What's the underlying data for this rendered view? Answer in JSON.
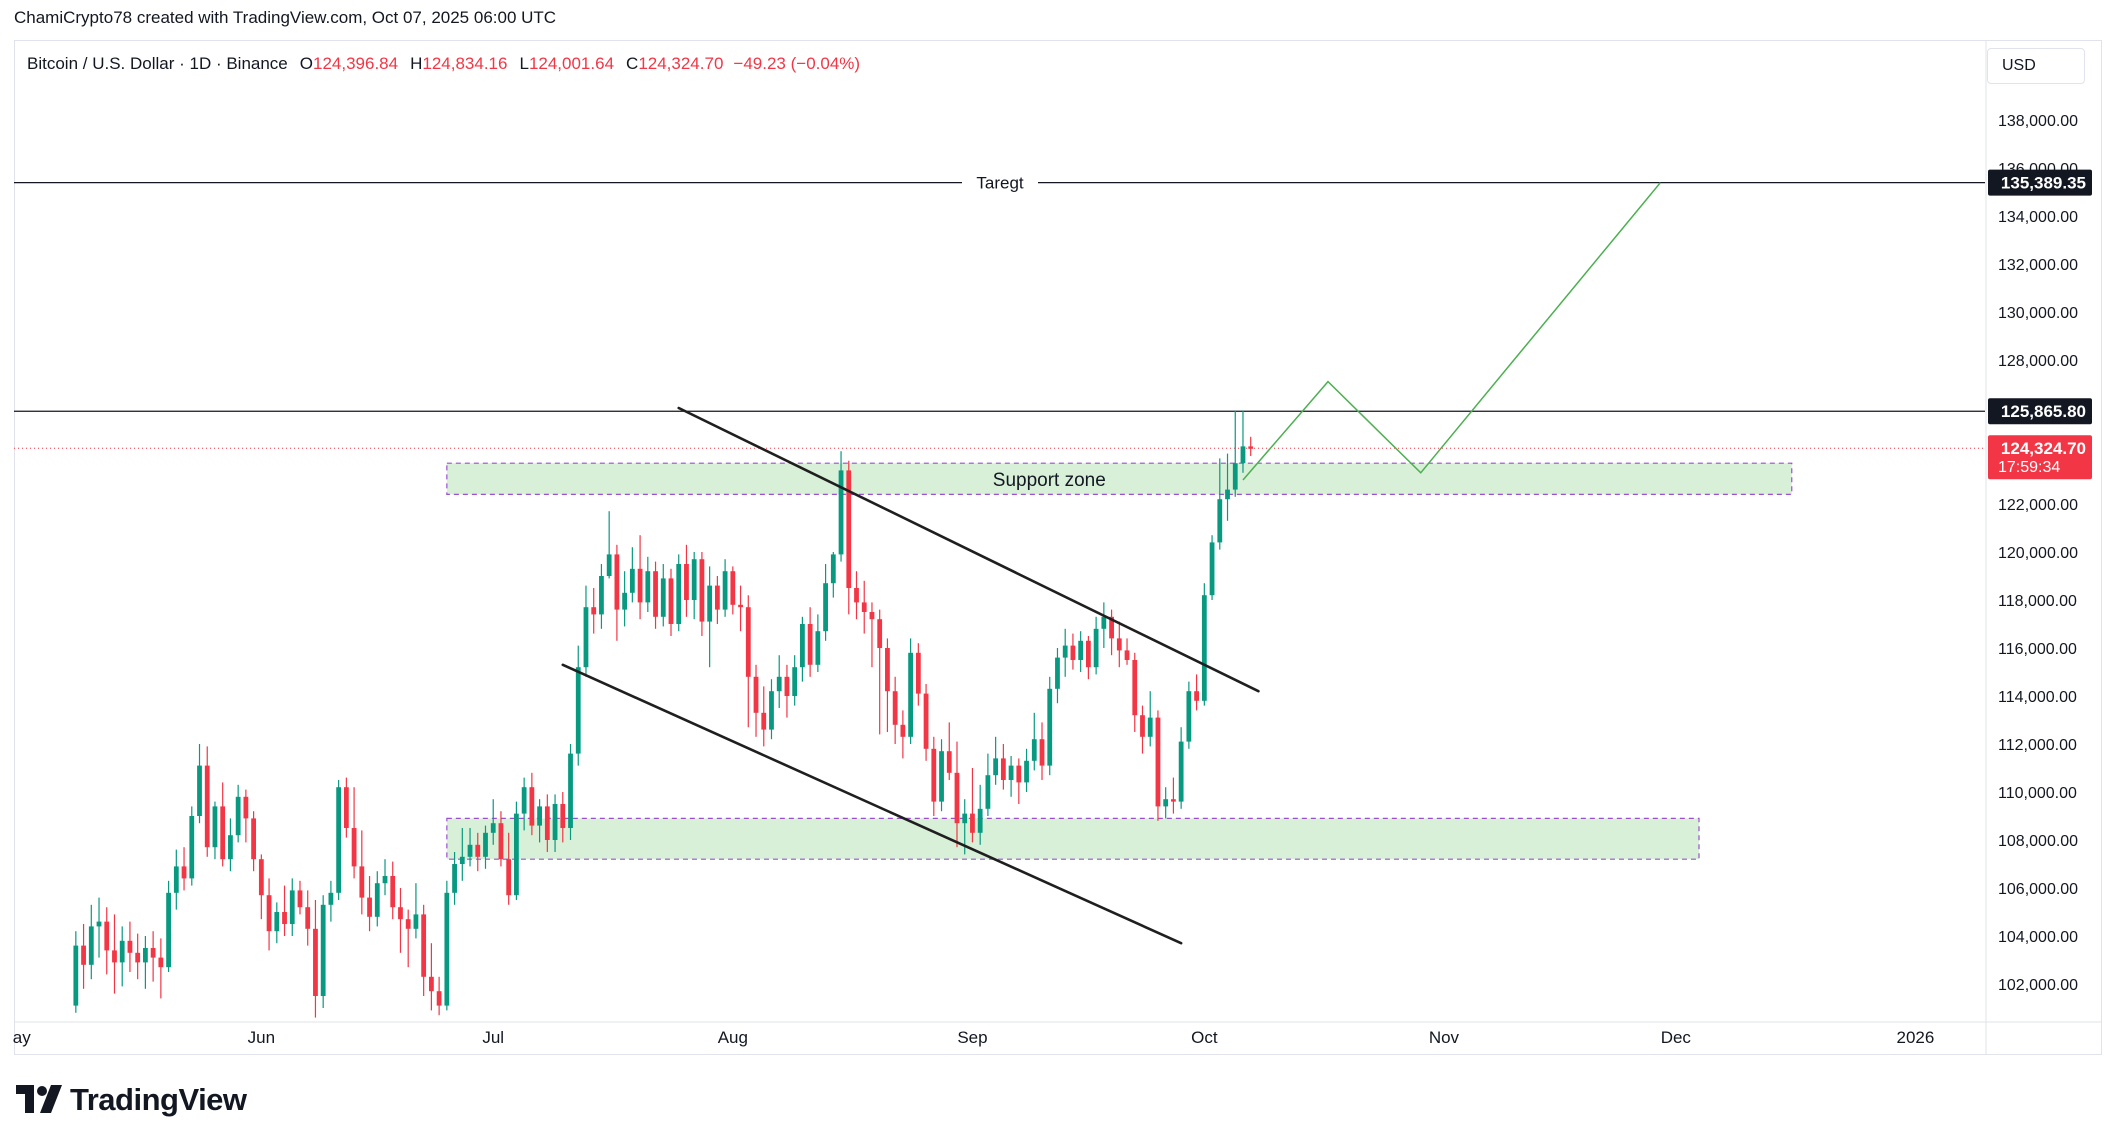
{
  "header": {
    "credit": "ChamiCrypto78 created with TradingView.com, Oct 07, 2025 06:00 UTC"
  },
  "legend": {
    "symbol": "Bitcoin / U.S. Dollar · 1D · Binance",
    "open_key": "O",
    "open": "124,396.84",
    "high_key": "H",
    "high": "124,834.16",
    "low_key": "L",
    "low": "124,001.64",
    "close_key": "C",
    "close": "124,324.70",
    "change": "−49.23 (−0.04%)"
  },
  "currency": "USD",
  "brand": {
    "name": "TradingView"
  },
  "colors": {
    "up": "#089981",
    "down": "#f23645",
    "zone_fill": "#d9f0d8",
    "zone_border": "#9c4fd0",
    "projection": "#4caf50",
    "trendline": "#1f1f1f"
  },
  "chart_data": {
    "type": "candlestick",
    "timeframe": "1D",
    "ylim": [
      100500,
      139500
    ],
    "y_ticks": [
      102000,
      104000,
      106000,
      108000,
      110000,
      112000,
      114000,
      116000,
      118000,
      120000,
      122000,
      124000,
      126000,
      128000,
      130000,
      132000,
      134000,
      136000,
      138000
    ],
    "y_tick_labels": [
      "102,000.00",
      "104,000.00",
      "106,000.00",
      "108,000.00",
      "110,000.00",
      "112,000.00",
      "114,000.00",
      "116,000.00",
      "118,000.00",
      "120,000.00",
      "122,000.00",
      "124,000.00",
      "126,000.00",
      "128,000.00",
      "130,000.00",
      "132,000.00",
      "134,000.00",
      "136,000.00",
      "138,000.00"
    ],
    "x_range": [
      "2025-04-30",
      "2026-01-10"
    ],
    "x_ticks": [
      {
        "date": "2025-05-01",
        "label": "ay"
      },
      {
        "date": "2025-06-01",
        "label": "Jun"
      },
      {
        "date": "2025-07-01",
        "label": "Jul"
      },
      {
        "date": "2025-08-01",
        "label": "Aug"
      },
      {
        "date": "2025-09-01",
        "label": "Sep"
      },
      {
        "date": "2025-10-01",
        "label": "Oct"
      },
      {
        "date": "2025-11-01",
        "label": "Nov"
      },
      {
        "date": "2025-12-01",
        "label": "Dec"
      },
      {
        "date": "2026-01-01",
        "label": "2026"
      }
    ],
    "candles_first_date": "2025-05-08",
    "candles": [
      [
        101100,
        104200,
        100800,
        103600
      ],
      [
        103600,
        104500,
        101800,
        102800
      ],
      [
        102800,
        105300,
        102200,
        104400
      ],
      [
        104400,
        105600,
        103100,
        104600
      ],
      [
        104600,
        105200,
        102400,
        103400
      ],
      [
        103400,
        104900,
        101600,
        102900
      ],
      [
        102900,
        104400,
        101900,
        103800
      ],
      [
        103800,
        104600,
        102500,
        103300
      ],
      [
        103300,
        104100,
        102200,
        102900
      ],
      [
        102900,
        104000,
        101800,
        103500
      ],
      [
        103500,
        104200,
        102100,
        103100
      ],
      [
        103100,
        103900,
        101400,
        102700
      ],
      [
        102700,
        106300,
        102500,
        105800
      ],
      [
        105800,
        107600,
        105100,
        106900
      ],
      [
        106900,
        107700,
        105900,
        106400
      ],
      [
        106400,
        109400,
        106100,
        109000
      ],
      [
        109000,
        112000,
        108700,
        111100
      ],
      [
        111100,
        111900,
        107300,
        107700
      ],
      [
        107700,
        109600,
        107200,
        109400
      ],
      [
        109400,
        110400,
        106900,
        107200
      ],
      [
        107200,
        108900,
        106700,
        108200
      ],
      [
        108200,
        110300,
        107900,
        109800
      ],
      [
        109800,
        110100,
        107900,
        108900
      ],
      [
        108900,
        109200,
        106700,
        107200
      ],
      [
        107200,
        107400,
        104700,
        105700
      ],
      [
        105700,
        106400,
        103400,
        104200
      ],
      [
        104200,
        105400,
        103700,
        105000
      ],
      [
        105000,
        106100,
        104000,
        104500
      ],
      [
        104500,
        106400,
        104000,
        105900
      ],
      [
        105900,
        106300,
        104900,
        105200
      ],
      [
        105200,
        105900,
        103600,
        104300
      ],
      [
        104300,
        105500,
        100600,
        101500
      ],
      [
        101500,
        105700,
        101000,
        105300
      ],
      [
        105300,
        106300,
        104600,
        105800
      ],
      [
        105800,
        110500,
        105500,
        110200
      ],
      [
        110200,
        110600,
        108100,
        108500
      ],
      [
        108500,
        110200,
        106400,
        106900
      ],
      [
        106900,
        108400,
        104900,
        105600
      ],
      [
        105600,
        106500,
        104200,
        104800
      ],
      [
        104800,
        106700,
        104400,
        106200
      ],
      [
        106200,
        107200,
        105700,
        106500
      ],
      [
        106500,
        107100,
        104700,
        105200
      ],
      [
        105200,
        106000,
        103300,
        104700
      ],
      [
        104700,
        105100,
        102700,
        104300
      ],
      [
        104300,
        106200,
        103900,
        104900
      ],
      [
        104900,
        105300,
        101500,
        102300
      ],
      [
        102300,
        103700,
        100900,
        101700
      ],
      [
        101700,
        102300,
        100700,
        101100
      ],
      [
        101100,
        106300,
        100900,
        105800
      ],
      [
        105800,
        107500,
        105300,
        107000
      ],
      [
        107000,
        108500,
        106300,
        107300
      ],
      [
        107300,
        108500,
        106900,
        107800
      ],
      [
        107800,
        108300,
        106700,
        107300
      ],
      [
        107300,
        108600,
        106800,
        108300
      ],
      [
        108300,
        109700,
        107800,
        108700
      ],
      [
        108700,
        109200,
        106900,
        107200
      ],
      [
        107200,
        108300,
        105300,
        105700
      ],
      [
        105700,
        109600,
        105500,
        109100
      ],
      [
        109100,
        110600,
        108400,
        110200
      ],
      [
        110200,
        110800,
        108200,
        108600
      ],
      [
        108600,
        109700,
        107900,
        109400
      ],
      [
        109400,
        109900,
        107500,
        108000
      ],
      [
        108000,
        109900,
        107500,
        109500
      ],
      [
        109500,
        110000,
        107900,
        108500
      ],
      [
        108500,
        112000,
        108000,
        111600
      ],
      [
        111600,
        116100,
        111100,
        115200
      ],
      [
        115200,
        118600,
        114800,
        117700
      ],
      [
        117700,
        118500,
        116600,
        117400
      ],
      [
        117400,
        119500,
        116800,
        119000
      ],
      [
        119000,
        121700,
        118900,
        119900
      ],
      [
        119900,
        120300,
        116300,
        117600
      ],
      [
        117600,
        119200,
        116900,
        118300
      ],
      [
        118300,
        120200,
        117900,
        119300
      ],
      [
        119300,
        120700,
        117200,
        117900
      ],
      [
        117900,
        119800,
        117500,
        119200
      ],
      [
        119200,
        119600,
        116800,
        117300
      ],
      [
        117300,
        119500,
        116900,
        118900
      ],
      [
        118900,
        119300,
        116500,
        117000
      ],
      [
        117000,
        119900,
        116700,
        119500
      ],
      [
        119500,
        120300,
        117300,
        118000
      ],
      [
        118000,
        120000,
        117200,
        119700
      ],
      [
        119700,
        120000,
        116500,
        117100
      ],
      [
        117100,
        119400,
        115200,
        118600
      ],
      [
        118600,
        119000,
        117000,
        117600
      ],
      [
        117600,
        119700,
        117300,
        119200
      ],
      [
        119200,
        119400,
        117400,
        117800
      ],
      [
        117800,
        118600,
        116700,
        117700
      ],
      [
        117700,
        118200,
        112700,
        114800
      ],
      [
        114800,
        115300,
        112300,
        113300
      ],
      [
        113300,
        114400,
        111900,
        112600
      ],
      [
        112600,
        114700,
        112200,
        114200
      ],
      [
        114200,
        115700,
        113500,
        114800
      ],
      [
        114800,
        115300,
        113100,
        114000
      ],
      [
        114000,
        115700,
        113600,
        115200
      ],
      [
        115200,
        117300,
        114600,
        117000
      ],
      [
        117000,
        117700,
        114800,
        115300
      ],
      [
        115300,
        117400,
        115000,
        116700
      ],
      [
        116700,
        119500,
        116300,
        118700
      ],
      [
        118700,
        120000,
        118100,
        119900
      ],
      [
        119900,
        124200,
        119600,
        123400
      ],
      [
        123400,
        123800,
        117400,
        118500
      ],
      [
        118500,
        119200,
        117200,
        117900
      ],
      [
        117900,
        118800,
        116600,
        117500
      ],
      [
        117500,
        117900,
        115200,
        117200
      ],
      [
        117200,
        117600,
        112400,
        116000
      ],
      [
        116000,
        116400,
        112500,
        114200
      ],
      [
        114200,
        114800,
        112000,
        112800
      ],
      [
        112800,
        113400,
        111400,
        112300
      ],
      [
        112300,
        116400,
        112000,
        115800
      ],
      [
        115800,
        116200,
        113600,
        114100
      ],
      [
        114100,
        114500,
        111300,
        111800
      ],
      [
        111800,
        112300,
        109000,
        109600
      ],
      [
        109600,
        112200,
        109200,
        111700
      ],
      [
        111700,
        112900,
        110500,
        110800
      ],
      [
        110800,
        112100,
        107700,
        108700
      ],
      [
        108700,
        109700,
        107400,
        109100
      ],
      [
        109100,
        111000,
        107900,
        108300
      ],
      [
        108300,
        110300,
        107800,
        109300
      ],
      [
        109300,
        111600,
        109000,
        110700
      ],
      [
        110700,
        112300,
        110300,
        111400
      ],
      [
        111400,
        112000,
        110100,
        110500
      ],
      [
        110500,
        111500,
        109800,
        111100
      ],
      [
        111100,
        111400,
        109500,
        110400
      ],
      [
        110400,
        111800,
        110000,
        111300
      ],
      [
        111300,
        113300,
        110900,
        112200
      ],
      [
        112200,
        112900,
        110500,
        111100
      ],
      [
        111100,
        114800,
        110700,
        114300
      ],
      [
        114300,
        116000,
        113700,
        115600
      ],
      [
        115600,
        116800,
        114800,
        116100
      ],
      [
        116100,
        116600,
        115100,
        115500
      ],
      [
        115500,
        116700,
        115000,
        116300
      ],
      [
        116300,
        116500,
        114700,
        115200
      ],
      [
        115200,
        117300,
        114900,
        116800
      ],
      [
        116800,
        117900,
        116000,
        117300
      ],
      [
        117300,
        117600,
        115700,
        116400
      ],
      [
        116400,
        117100,
        115200,
        115900
      ],
      [
        115900,
        116400,
        115300,
        115500
      ],
      [
        115500,
        115800,
        112500,
        113200
      ],
      [
        113200,
        113600,
        111600,
        112300
      ],
      [
        112300,
        114200,
        111900,
        113100
      ],
      [
        113100,
        113400,
        108800,
        109400
      ],
      [
        109400,
        110200,
        108900,
        109700
      ],
      [
        109700,
        110600,
        109100,
        109600
      ],
      [
        109600,
        112700,
        109300,
        112100
      ],
      [
        112100,
        114600,
        111800,
        114200
      ],
      [
        114200,
        114900,
        113400,
        113800
      ],
      [
        113800,
        118700,
        113600,
        118200
      ],
      [
        118200,
        120700,
        118000,
        120400
      ],
      [
        120400,
        123900,
        120100,
        122200
      ],
      [
        122200,
        124100,
        121300,
        122600
      ],
      [
        122600,
        125900,
        122300,
        123700
      ],
      [
        123700,
        125900,
        123300,
        124400
      ],
      [
        124400,
        124800,
        124000,
        124300
      ]
    ],
    "horizontal_lines": [
      {
        "price": 135389.35,
        "label": "Taregt",
        "price_label": "135,389.35"
      },
      {
        "price": 125865.8,
        "label": "",
        "price_label": "125,865.80"
      }
    ],
    "last_price": {
      "price": 124324.7,
      "label": "124,324.70",
      "countdown": "17:59:34"
    },
    "zones": [
      {
        "label": "Support zone",
        "date_from": "2025-06-25",
        "date_to": "2025-12-16",
        "price_from": 122400,
        "price_to": 123700
      },
      {
        "label": "",
        "date_from": "2025-06-25",
        "date_to": "2025-12-04",
        "price_from": 107200,
        "price_to": 108900
      }
    ],
    "trendlines": [
      {
        "from": [
          "2025-07-25",
          126000
        ],
        "to": [
          "2025-10-08",
          114200
        ]
      },
      {
        "from": [
          "2025-07-10",
          115300
        ],
        "to": [
          "2025-09-28",
          103700
        ]
      }
    ],
    "projection": [
      [
        "2025-10-06",
        123000
      ],
      [
        "2025-10-17",
        127100
      ],
      [
        "2025-10-29",
        123300
      ],
      [
        "2025-11-29",
        135389.35
      ]
    ]
  }
}
